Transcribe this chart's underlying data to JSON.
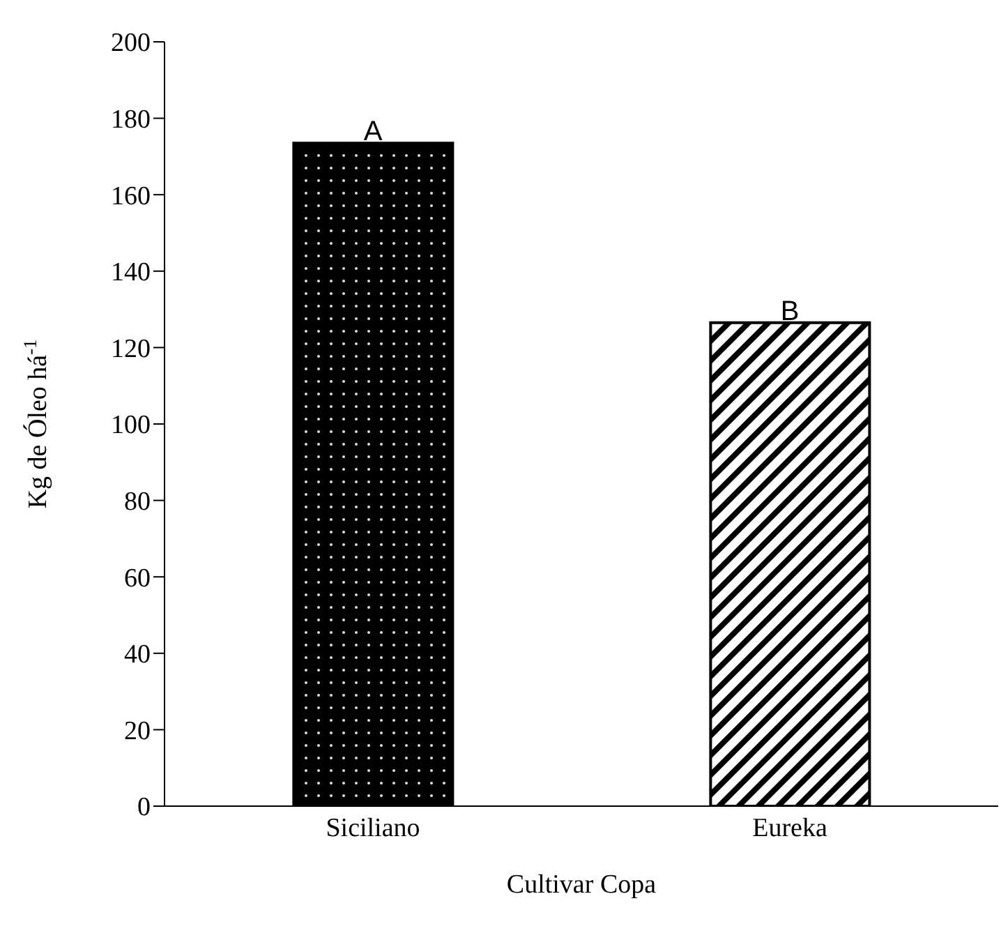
{
  "chart_data": {
    "type": "bar",
    "xlabel": "Cultivar Copa",
    "ylabel": "Kg de Óleo há$^{-1}$",
    "categories": [
      "Siciliano",
      "Eureka"
    ],
    "values": [
      173.5,
      126.5
    ],
    "colors": [
      "#000000",
      "#000000"
    ],
    "ylim": [
      0,
      200
    ],
    "yticks": [
      0,
      20,
      40,
      60,
      80,
      100,
      120,
      140,
      160,
      180,
      200
    ],
    "grid": false,
    "legend": false,
    "annotations": [
      {
        "text": "A",
        "x": "Siciliano",
        "y": 173.5
      },
      {
        "text": "B",
        "x": "Eureka",
        "y": 126.5
      }
    ]
  }
}
